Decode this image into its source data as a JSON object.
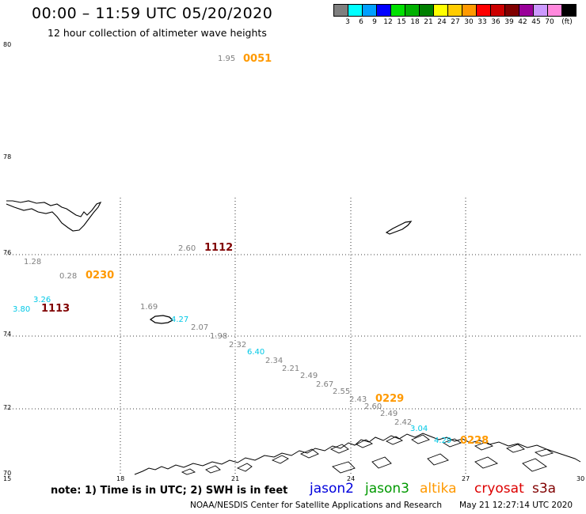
{
  "header": {
    "title": "00:00 – 11:59 UTC 05/20/2020",
    "subtitle": "12 hour collection of altimeter wave heights"
  },
  "legend": {
    "unit": "(ft)",
    "bins": [
      {
        "label": "3",
        "color": "#7f7f7f"
      },
      {
        "label": "6",
        "color": "#00ffff"
      },
      {
        "label": "9",
        "color": "#00a0ff"
      },
      {
        "label": "12",
        "color": "#0000ff"
      },
      {
        "label": "15",
        "color": "#00e000"
      },
      {
        "label": "18",
        "color": "#00b000"
      },
      {
        "label": "21",
        "color": "#008000"
      },
      {
        "label": "24",
        "color": "#ffff00"
      },
      {
        "label": "27",
        "color": "#ffcc00"
      },
      {
        "label": "30",
        "color": "#ff9900"
      },
      {
        "label": "33",
        "color": "#ff0000"
      },
      {
        "label": "36",
        "color": "#cc0000"
      },
      {
        "label": "39",
        "color": "#800000"
      },
      {
        "label": "42",
        "color": "#990099"
      },
      {
        "label": "45",
        "color": "#cc99ff"
      },
      {
        "label": "70",
        "color": "#ff88dd"
      },
      {
        "label": "",
        "color": "#000000"
      }
    ]
  },
  "map": {
    "lat_labels": [
      "80",
      "78",
      "76",
      "74",
      "72",
      "70"
    ],
    "lon_labels": [
      "15",
      "18",
      "21",
      "24",
      "27",
      "30"
    ],
    "observations": [
      {
        "text": "1.95",
        "color": "#808080"
      },
      {
        "text": "2.60",
        "color": "#808080"
      },
      {
        "text": "1.28",
        "color": "#808080"
      },
      {
        "text": "0.28",
        "color": "#808080"
      },
      {
        "text": "3.26",
        "color": "#00c8e6"
      },
      {
        "text": "3.80",
        "color": "#00c8e6"
      },
      {
        "text": "1.69",
        "color": "#808080"
      },
      {
        "text": "4.27",
        "color": "#00c8e6"
      },
      {
        "text": "2.07",
        "color": "#808080"
      },
      {
        "text": "1.98",
        "color": "#808080"
      },
      {
        "text": "2.32",
        "color": "#808080"
      },
      {
        "text": "6.40",
        "color": "#00c8e6"
      },
      {
        "text": "2.34",
        "color": "#808080"
      },
      {
        "text": "2.21",
        "color": "#808080"
      },
      {
        "text": "2.49",
        "color": "#808080"
      },
      {
        "text": "2.67",
        "color": "#808080"
      },
      {
        "text": "2.55",
        "color": "#808080"
      },
      {
        "text": "2.43",
        "color": "#808080"
      },
      {
        "text": "2.60",
        "color": "#808080"
      },
      {
        "text": "2.49",
        "color": "#808080"
      },
      {
        "text": "2.42",
        "color": "#808080"
      },
      {
        "text": "3.04",
        "color": "#00c8e6"
      },
      {
        "text": "4.29",
        "color": "#00c8e6"
      }
    ],
    "time_tags": [
      {
        "text": "0051",
        "color": "#ff9900"
      },
      {
        "text": "1112",
        "color": "#800000"
      },
      {
        "text": "0230",
        "color": "#ff9900"
      },
      {
        "text": "1113",
        "color": "#800000"
      },
      {
        "text": "0229",
        "color": "#ff9900"
      },
      {
        "text": "0228",
        "color": "#ff9900"
      }
    ]
  },
  "footer": {
    "note": "note: 1) Time is in UTC; 2) SWH is in feet",
    "missions": [
      {
        "text": "jason2",
        "color": "#0000dd"
      },
      {
        "text": "jason3",
        "color": "#009900"
      },
      {
        "text": "altika",
        "color": "#ff9900"
      },
      {
        "text": "cryosat",
        "color": "#dd0000"
      },
      {
        "text": "s3a",
        "color": "#800000"
      }
    ],
    "credit": "NOAA/NESDIS Center for Satellite Applications and Research",
    "timestamp": "May 21 12:27:14 UTC 2020"
  }
}
